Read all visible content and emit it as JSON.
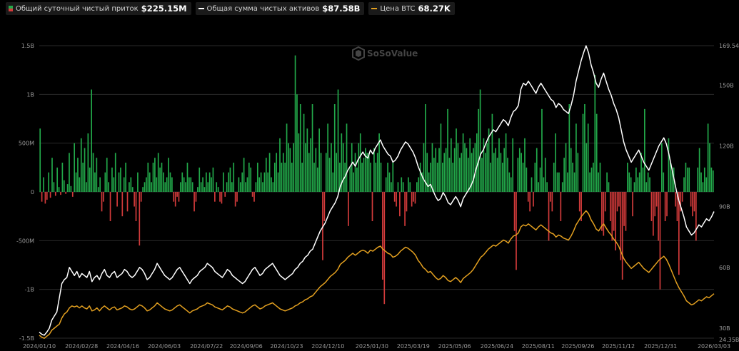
{
  "legend": {
    "flow": {
      "name": "Общий суточный чистый приток",
      "value": "$225.15M",
      "color_pos": "#22a94a",
      "color_neg": "#d33b3b"
    },
    "assets": {
      "name": "Общая сумма чистых активов",
      "value": "$87.58B",
      "color": "#ffffff"
    },
    "btc": {
      "name": "Цена BTC",
      "value": "68.27K",
      "color": "#e3a020"
    }
  },
  "watermark": {
    "text": "SoSoValue",
    "icon": "sosovalue-logo-icon"
  },
  "chart_data": {
    "type": "bar+line",
    "x_range": [
      "2024-01-10",
      "2026-03-03"
    ],
    "x_ticks": [
      "2024/01/10",
      "2024/02/28",
      "2024/04/16",
      "2024/06/03",
      "2024/07/22",
      "2024/09/06",
      "2024/10/23",
      "2024/12/10",
      "2025/01/30",
      "2025/03/19",
      "2025/05/06",
      "2025/06/24",
      "2025/08/11",
      "2025/09/26",
      "2025/11/12",
      "2025/12/31",
      "2026/03/03"
    ],
    "y_left": {
      "ticks": [
        "1.5B",
        "1B",
        "500M",
        "0",
        "-500M",
        "-1B",
        "-1.5B"
      ],
      "range": [
        -1500,
        1500
      ],
      "unit": "M"
    },
    "y_right": {
      "ticks": [
        "169.54B",
        "150B",
        "120B",
        "90B",
        "60B",
        "30B",
        "24.35B"
      ],
      "range": [
        24.35,
        169.54
      ],
      "unit": "B"
    },
    "series": [
      {
        "name": "Общий суточный чистый приток",
        "kind": "bar",
        "values": [
          650,
          -100,
          150,
          -120,
          -80,
          200,
          -60,
          350,
          100,
          -40,
          250,
          50,
          -30,
          300,
          120,
          -20,
          80,
          400,
          60,
          -50,
          500,
          200,
          350,
          150,
          550,
          300,
          450,
          100,
          600,
          250,
          1050,
          400,
          200,
          350,
          50,
          150,
          -200,
          -100,
          200,
          350,
          100,
          -300,
          250,
          150,
          400,
          -150,
          200,
          250,
          -250,
          150,
          300,
          -200,
          100,
          150,
          50,
          -150,
          -300,
          200,
          -550,
          -100,
          50,
          100,
          150,
          300,
          200,
          100,
          300,
          350,
          150,
          400,
          250,
          300,
          200,
          100,
          150,
          350,
          200,
          150,
          -100,
          -150,
          -50,
          -100,
          100,
          200,
          150,
          100,
          300,
          150,
          150,
          100,
          -200,
          -100,
          50,
          250,
          100,
          150,
          50,
          200,
          100,
          200,
          150,
          250,
          -100,
          100,
          50,
          -100,
          -120,
          200,
          -50,
          100,
          200,
          250,
          100,
          300,
          -150,
          -100,
          150,
          100,
          200,
          350,
          100,
          150,
          300,
          250,
          -50,
          -100,
          100,
          300,
          150,
          200,
          100,
          200,
          350,
          200,
          400,
          150,
          100,
          300,
          400,
          200,
          550,
          300,
          400,
          300,
          700,
          500,
          450,
          300,
          500,
          1400,
          1000,
          600,
          900,
          300,
          800,
          500,
          650,
          400,
          550,
          900,
          300,
          450,
          250,
          650,
          400,
          -700,
          -300,
          400,
          700,
          350,
          500,
          200,
          900,
          400,
          1050,
          300,
          600,
          500,
          300,
          700,
          -350,
          250,
          500,
          200,
          400,
          250,
          500,
          600,
          300,
          350,
          450,
          400,
          400,
          300,
          -300,
          450,
          300,
          400,
          600,
          300,
          -900,
          -1150,
          150,
          300,
          200,
          100,
          300,
          -100,
          -150,
          100,
          -250,
          150,
          100,
          -350,
          -200,
          150,
          100,
          -150,
          -100,
          -120,
          100,
          150,
          300,
          200,
          500,
          900,
          400,
          200,
          300,
          500,
          350,
          450,
          300,
          450,
          700,
          300,
          400,
          450,
          850,
          350,
          550,
          300,
          450,
          650,
          500,
          350,
          400,
          600,
          500,
          450,
          350,
          550,
          400,
          450,
          500,
          600,
          850,
          1050,
          350,
          550,
          400,
          500,
          650,
          300,
          800,
          400,
          450,
          350,
          550,
          400,
          300,
          450,
          600,
          350,
          200,
          150,
          550,
          -400,
          -800,
          350,
          450,
          400,
          300,
          550,
          250,
          -100,
          -200,
          150,
          -150,
          300,
          450,
          100,
          250,
          850,
          150,
          350,
          100,
          -500,
          -100,
          -200,
          300,
          600,
          200,
          200,
          -300,
          100,
          350,
          500,
          200,
          900,
          450,
          300,
          200,
          700,
          400,
          -200,
          -300,
          800,
          900,
          500,
          700,
          200,
          250,
          300,
          1200,
          800,
          200,
          300,
          -400,
          -450,
          -200,
          200,
          100,
          -300,
          -500,
          -400,
          -600,
          -200,
          -150,
          -700,
          -900,
          -350,
          -400,
          300,
          200,
          150,
          -250,
          100,
          250,
          150,
          200,
          400,
          250,
          850,
          100,
          200,
          150,
          -300,
          -450,
          -250,
          -150,
          -500,
          -1000,
          500,
          200,
          -300,
          -250,
          550,
          300,
          250,
          250,
          -150,
          -300,
          -850,
          -200,
          -100,
          150,
          300,
          250,
          250,
          -150,
          -250,
          -200,
          -500,
          250,
          450,
          200,
          100,
          250,
          150,
          700,
          500,
          250,
          220
        ],
        "colors": {
          "positive": "#22a94a",
          "negative": "#d33b3b"
        }
      },
      {
        "name": "Общая сумма чистых активов",
        "kind": "line",
        "axis": "right",
        "color": "#ffffff",
        "values": [
          28,
          27,
          26.5,
          28,
          30,
          34,
          36,
          38,
          45,
          52,
          54,
          55,
          60,
          58,
          56,
          58,
          55,
          57,
          56,
          55,
          58,
          53,
          55,
          56,
          54,
          57,
          59,
          56,
          55,
          57,
          58,
          55,
          56,
          57,
          59,
          58,
          56,
          55,
          56,
          58,
          60,
          59,
          57,
          54,
          55,
          57,
          59,
          62,
          60,
          58,
          56,
          55,
          54,
          55,
          57,
          59,
          60,
          58,
          56,
          54,
          52,
          54,
          55,
          56,
          58,
          59,
          60,
          62,
          61,
          60,
          58,
          57,
          56,
          55,
          57,
          59,
          58,
          56,
          55,
          54,
          53,
          52,
          53,
          55,
          57,
          59,
          60,
          58,
          56,
          57,
          59,
          60,
          61,
          62,
          60,
          58,
          56,
          55,
          54,
          55,
          56,
          57,
          59,
          60,
          62,
          63,
          65,
          66,
          68,
          69,
          72,
          75,
          78,
          80,
          82,
          85,
          88,
          90,
          92,
          95,
          100,
          103,
          105,
          108,
          110,
          112,
          110,
          113,
          115,
          117,
          115,
          114,
          118,
          116,
          119,
          121,
          123,
          120,
          118,
          116,
          115,
          112,
          113,
          115,
          118,
          120,
          122,
          121,
          119,
          117,
          114,
          110,
          107,
          104,
          102,
          100,
          101,
          98,
          95,
          93,
          94,
          97,
          95,
          92,
          91,
          93,
          95,
          93,
          90,
          94,
          96,
          98,
          100,
          103,
          108,
          112,
          116,
          118,
          121,
          124,
          126,
          128,
          127,
          129,
          131,
          133,
          132,
          130,
          134,
          137,
          138,
          140,
          148,
          151,
          150,
          152,
          150,
          148,
          146,
          149,
          151,
          149,
          147,
          145,
          143,
          142,
          139,
          141,
          140,
          138,
          137,
          136,
          140,
          145,
          152,
          157,
          162,
          166,
          169.5,
          166,
          160,
          156,
          151,
          149,
          153,
          156,
          152,
          148,
          145,
          141,
          138,
          134,
          128,
          122,
          118,
          115,
          112,
          114,
          116,
          118,
          115,
          112,
          110,
          108,
          111,
          114,
          117,
          120,
          122,
          124,
          121,
          116,
          110,
          104,
          98,
          93,
          89,
          85,
          80,
          78,
          76,
          77,
          79,
          81,
          80,
          82,
          84,
          83,
          85,
          87.6
        ]
      },
      {
        "name": "Цена BTC",
        "kind": "line",
        "axis": "right",
        "color": "#e3a020",
        "values": [
          26.5,
          25.5,
          25,
          26,
          27,
          29,
          30,
          31,
          32,
          35,
          37,
          38,
          40,
          41,
          40.5,
          41,
          40,
          41,
          40,
          39.5,
          41,
          38.5,
          39,
          40,
          38.5,
          40,
          41,
          40,
          39,
          40,
          40.5,
          39,
          39.5,
          40,
          41,
          40.5,
          39.5,
          39,
          39.5,
          40.5,
          41.5,
          41,
          40,
          38.5,
          39,
          40,
          41,
          42.5,
          41.5,
          40.5,
          39.5,
          39,
          38.5,
          39,
          40,
          41,
          41.5,
          40.5,
          39.5,
          38.5,
          37.5,
          38.5,
          39,
          39.5,
          40.5,
          41,
          41.5,
          42.5,
          42,
          41.5,
          40.5,
          40,
          39.5,
          39,
          40,
          41,
          40.5,
          39.5,
          39,
          38.5,
          38,
          37.5,
          38,
          39,
          40,
          41,
          41.5,
          40.5,
          39.5,
          40,
          41,
          41.5,
          42,
          42.5,
          41.5,
          40.5,
          39.5,
          39,
          38.5,
          39,
          39.5,
          40,
          41,
          41.5,
          42.5,
          43,
          44,
          44.5,
          45.5,
          46,
          47.5,
          49,
          50.5,
          51.5,
          52.5,
          54,
          55.5,
          56.5,
          57.5,
          59,
          61.5,
          62.5,
          63.5,
          65,
          66,
          67,
          66,
          67,
          68,
          68.5,
          68,
          67,
          68.5,
          68,
          69,
          70,
          70.5,
          69,
          68,
          67,
          66.5,
          65,
          65.5,
          66.5,
          68,
          69,
          70,
          69.5,
          68.5,
          67.5,
          66,
          63.5,
          62,
          60,
          59,
          57.5,
          58,
          56.5,
          55,
          54,
          54.5,
          56,
          55,
          53.5,
          53,
          54,
          55,
          54,
          52.5,
          54.5,
          55.5,
          56.5,
          57.5,
          59,
          61,
          63,
          65,
          66,
          67.5,
          69,
          70,
          71,
          70.5,
          71.5,
          72.5,
          73.5,
          73,
          72,
          74,
          75.5,
          76,
          77,
          80,
          81,
          80.5,
          81.5,
          80.5,
          79.5,
          78.5,
          80,
          81,
          80,
          79,
          78,
          77,
          76.5,
          75,
          76,
          75.5,
          74.5,
          74,
          73.5,
          75.5,
          78,
          81,
          83,
          85,
          86.5,
          88,
          86.5,
          83.5,
          81.5,
          79,
          78,
          80,
          81.5,
          79.5,
          77.5,
          76,
          74,
          72.5,
          70.5,
          67.5,
          64.5,
          62.5,
          61,
          59.5,
          60.5,
          61.5,
          62.5,
          61,
          59.5,
          58.5,
          57.5,
          59,
          60.5,
          62,
          63.5,
          64.5,
          65.5,
          64,
          61.5,
          58.5,
          55.5,
          52.5,
          50,
          48,
          46,
          43.5,
          42.5,
          41.5,
          42,
          43,
          44,
          43.5,
          44.5,
          45.5,
          45,
          46,
          47
        ]
      }
    ],
    "grid": "horizontal",
    "legend_position": "top-left"
  }
}
